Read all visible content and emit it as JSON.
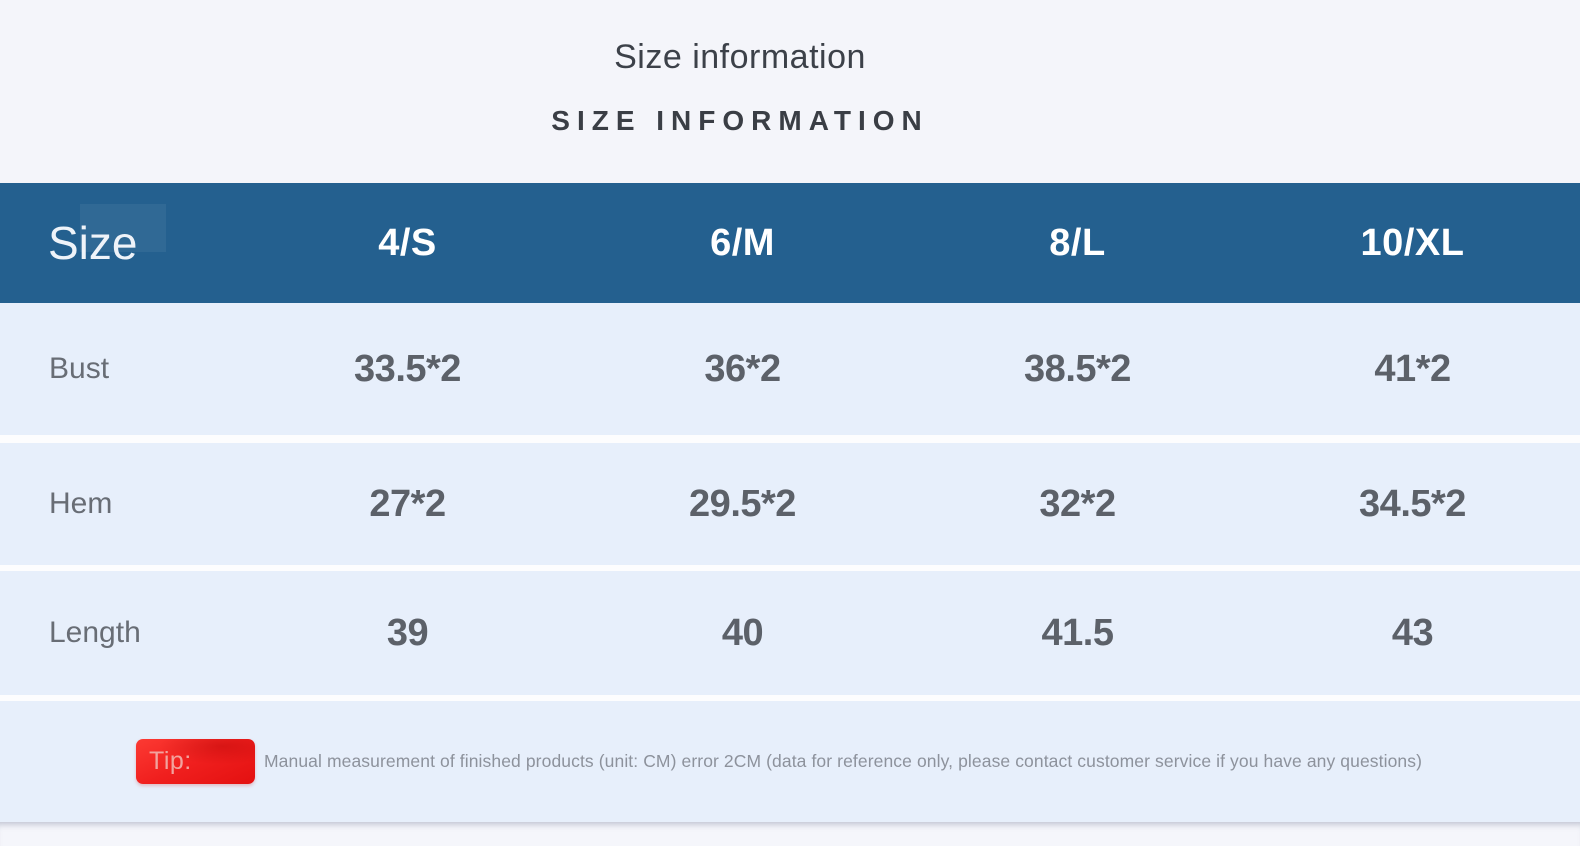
{
  "page": {
    "title": "Size information",
    "subtitle": "SIZE INFORMATION"
  },
  "table": {
    "header": {
      "label": "Size",
      "columns": [
        "4/S",
        "6/M",
        "8/L",
        "10/XL"
      ]
    },
    "rows": [
      {
        "label": "Bust",
        "values": [
          "33.5*2",
          "36*2",
          "38.5*2",
          "41*2"
        ]
      },
      {
        "label": "Hem",
        "values": [
          "27*2",
          "29.5*2",
          "32*2",
          "34.5*2"
        ]
      },
      {
        "label": "Length",
        "values": [
          "39",
          "40",
          "41.5",
          "43"
        ]
      }
    ]
  },
  "tip": {
    "badge_label": "Tip:",
    "text": "Manual measurement of finished products (unit: CM) error 2CM (data for reference only, please contact customer service if you have any questions)"
  },
  "colors": {
    "header_blue": "#24608f",
    "row_light_blue": "#e7effb",
    "page_background": "#f4f5fa",
    "separator_white": "#fdfdfe",
    "tip_red": "#ee1c1c",
    "value_gray": "#5c6169",
    "label_gray": "#686d75",
    "tip_text_gray": "#8d929c"
  },
  "chart_data": {
    "type": "table",
    "title": "Size information",
    "subtitle": "SIZE INFORMATION",
    "columns": [
      "Size",
      "4/S",
      "6/M",
      "8/L",
      "10/XL"
    ],
    "rows": [
      [
        "Bust",
        "33.5*2",
        "36*2",
        "38.5*2",
        "41*2"
      ],
      [
        "Hem",
        "27*2",
        "29.5*2",
        "32*2",
        "34.5*2"
      ],
      [
        "Length",
        "39",
        "40",
        "41.5",
        "43"
      ]
    ],
    "unit": "CM",
    "note": "Manual measurement of finished products (unit: CM) error 2CM (data for reference only, please contact customer service if you have any questions)"
  }
}
